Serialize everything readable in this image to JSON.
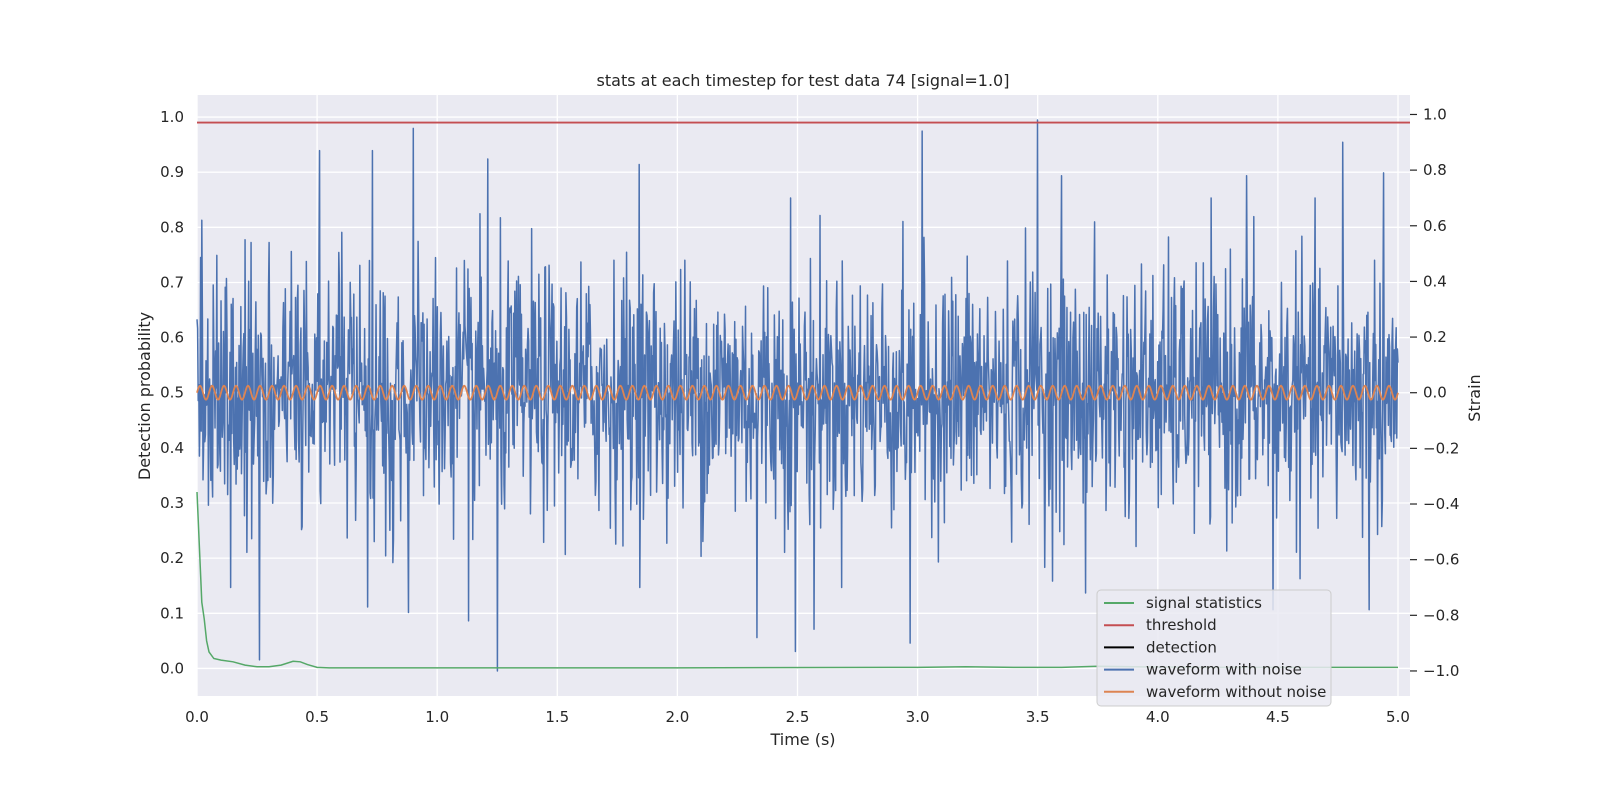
{
  "chart_data": {
    "type": "line",
    "title": "stats at each timestep for test data 74 [signal=1.0]",
    "xlabel": "Time (s)",
    "ylabel_left": "Detection probability",
    "ylabel_right": "Strain",
    "xlim": [
      0.0,
      5.05
    ],
    "ylim_left": [
      -0.05,
      1.04
    ],
    "ylim_right": [
      -1.09,
      1.07
    ],
    "xticks": [
      0.0,
      0.5,
      1.0,
      1.5,
      2.0,
      2.5,
      3.0,
      3.5,
      4.0,
      4.5,
      5.0
    ],
    "xtick_labels": [
      "0.0",
      "0.5",
      "1.0",
      "1.5",
      "2.0",
      "2.5",
      "3.0",
      "3.5",
      "4.0",
      "4.5",
      "5.0"
    ],
    "yticks_left": [
      0.0,
      0.1,
      0.2,
      0.3,
      0.4,
      0.5,
      0.6,
      0.7,
      0.8,
      0.9,
      1.0
    ],
    "ytick_labels_left": [
      "0.0",
      "0.1",
      "0.2",
      "0.3",
      "0.4",
      "0.5",
      "0.6",
      "0.7",
      "0.8",
      "0.9",
      "1.0"
    ],
    "yticks_right": [
      -1.0,
      -0.8,
      -0.6,
      -0.4,
      -0.2,
      0.0,
      0.2,
      0.4,
      0.6,
      0.8,
      1.0
    ],
    "ytick_labels_right": [
      "−1.0",
      "−0.8",
      "−0.6",
      "−0.4",
      "−0.2",
      "0.0",
      "0.2",
      "0.4",
      "0.6",
      "0.8",
      "1.0"
    ],
    "grid": true,
    "legend_position": "lower-right",
    "series": [
      {
        "name": "signal statistics",
        "axis": "left",
        "color": "#55a868",
        "x": [
          0.0,
          0.01,
          0.02,
          0.03,
          0.04,
          0.05,
          0.07,
          0.1,
          0.15,
          0.2,
          0.25,
          0.3,
          0.35,
          0.4,
          0.43,
          0.46,
          0.5,
          0.55,
          1.0,
          2.0,
          3.0,
          3.2,
          3.4,
          3.6,
          3.75,
          3.9,
          4.2,
          4.6,
          5.0
        ],
        "y": [
          0.32,
          0.22,
          0.12,
          0.09,
          0.05,
          0.03,
          0.018,
          0.015,
          0.012,
          0.006,
          0.003,
          0.003,
          0.006,
          0.013,
          0.012,
          0.007,
          0.002,
          0.001,
          0.001,
          0.001,
          0.002,
          0.003,
          0.002,
          0.002,
          0.004,
          0.003,
          0.002,
          0.002,
          0.002
        ]
      },
      {
        "name": "threshold",
        "axis": "left",
        "color": "#c44e52",
        "x": [
          -0.1,
          5.2
        ],
        "y": [
          0.99,
          0.99
        ]
      },
      {
        "name": "detection",
        "axis": "left",
        "color": "#000000",
        "x": [],
        "y": []
      },
      {
        "name": "waveform with noise",
        "axis": "right",
        "color": "#4c72b0",
        "sample_count": 2000,
        "x_range": [
          0.0,
          5.0
        ],
        "typical_abs_amplitude": 0.18,
        "peaks": [
          {
            "x": 0.02,
            "y": 0.62
          },
          {
            "x": 0.2,
            "y": 0.55
          },
          {
            "x": 0.3,
            "y": 0.54
          },
          {
            "x": 0.51,
            "y": 0.87
          },
          {
            "x": 0.73,
            "y": 0.87
          },
          {
            "x": 0.9,
            "y": 0.95
          },
          {
            "x": 1.21,
            "y": 0.84
          },
          {
            "x": 1.84,
            "y": 0.82
          },
          {
            "x": 2.47,
            "y": 0.7
          },
          {
            "x": 3.02,
            "y": 0.94
          },
          {
            "x": 3.5,
            "y": 0.98
          },
          {
            "x": 3.6,
            "y": 0.78
          },
          {
            "x": 4.37,
            "y": 0.78
          },
          {
            "x": 4.77,
            "y": 0.9
          },
          {
            "x": 4.94,
            "y": 0.79
          }
        ],
        "troughs": [
          {
            "x": 0.26,
            "y": -0.96
          },
          {
            "x": 1.25,
            "y": -1.0
          },
          {
            "x": 2.57,
            "y": -0.85
          },
          {
            "x": 2.49,
            "y": -0.93
          },
          {
            "x": 2.97,
            "y": -0.9
          },
          {
            "x": 2.33,
            "y": -0.88
          },
          {
            "x": 0.88,
            "y": -0.79
          },
          {
            "x": 1.13,
            "y": -0.82
          },
          {
            "x": 0.71,
            "y": -0.77
          },
          {
            "x": 3.7,
            "y": -0.72
          },
          {
            "x": 4.48,
            "y": -0.78
          },
          {
            "x": 4.88,
            "y": -0.78
          }
        ]
      },
      {
        "name": "waveform without noise",
        "axis": "right",
        "color": "#dd8452",
        "x_range": [
          0.0,
          5.0
        ],
        "amplitude": 0.025,
        "frequency_hz": 20
      }
    ]
  }
}
